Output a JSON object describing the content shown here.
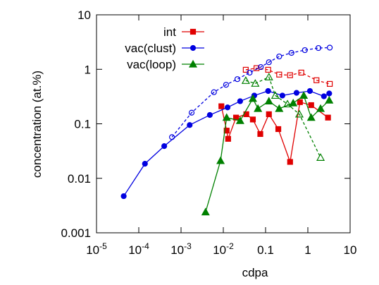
{
  "chart_data": {
    "type": "line",
    "xlabel": "cdpa",
    "ylabel": "concentration (at.%)",
    "xscale": "log",
    "yscale": "log",
    "xlim": [
      1e-05,
      10
    ],
    "ylim": [
      0.001,
      10
    ],
    "xticks": [
      {
        "value": 1e-05,
        "label": "10",
        "exponent": "-5"
      },
      {
        "value": 0.0001,
        "label": "10",
        "exponent": "-4"
      },
      {
        "value": 0.001,
        "label": "10",
        "exponent": "-3"
      },
      {
        "value": 0.01,
        "label": "10",
        "exponent": "-2"
      },
      {
        "value": 0.1,
        "label": "0.1"
      },
      1,
      10
    ],
    "yticks": [
      0.001,
      0.01,
      0.1,
      1,
      10
    ],
    "legend": "top-left",
    "series": [
      {
        "name": "int",
        "color": "#e00000",
        "marker": "square",
        "filled": true,
        "dashed": false,
        "x": [
          0.009,
          0.012,
          0.013,
          0.02,
          0.035,
          0.05,
          0.075,
          0.12,
          0.2,
          0.38,
          0.65,
          1.2,
          3.0
        ],
        "values": [
          0.21,
          0.075,
          0.053,
          0.13,
          0.15,
          0.12,
          0.065,
          0.15,
          0.08,
          0.02,
          0.25,
          0.22,
          0.13
        ]
      },
      {
        "name": "vac(clust)",
        "color": "#0000e0",
        "marker": "circle",
        "filled": true,
        "dashed": false,
        "x": [
          4.4e-05,
          0.00014,
          0.0004,
          0.0016,
          0.0048,
          0.0126,
          0.025,
          0.054,
          0.115,
          0.25,
          0.54,
          1.12,
          2.4,
          3.2
        ],
        "values": [
          0.0047,
          0.0185,
          0.039,
          0.095,
          0.145,
          0.2,
          0.26,
          0.33,
          0.4,
          0.33,
          0.37,
          0.4,
          0.32,
          0.36
        ]
      },
      {
        "name": "vac(loop)",
        "color": "#008000",
        "marker": "triangle",
        "filled": true,
        "dashed": false,
        "x": [
          0.0038,
          0.0086,
          0.012,
          0.025,
          0.05,
          0.066,
          0.12,
          0.21,
          0.45,
          0.8,
          1.2,
          2.0,
          3.2
        ],
        "values": [
          0.0024,
          0.021,
          0.13,
          0.114,
          0.29,
          0.19,
          0.26,
          0.19,
          0.24,
          0.33,
          0.13,
          0.19,
          0.27
        ]
      },
      {
        "color": "#e00000",
        "marker": "square",
        "filled": false,
        "dashed": true,
        "x": [
          0.034,
          0.061,
          0.115,
          0.21,
          0.38,
          0.7,
          1.6,
          3.3
        ],
        "values": [
          0.98,
          1.05,
          0.98,
          0.8,
          0.78,
          0.87,
          0.63,
          0.54
        ]
      },
      {
        "color": "#0000e0",
        "marker": "circle",
        "filled": false,
        "dashed": true,
        "x": [
          0.00061,
          0.00178,
          0.006,
          0.0116,
          0.0215,
          0.042,
          0.077,
          0.12,
          0.21,
          0.41,
          0.85,
          1.78,
          3.3
        ],
        "values": [
          0.057,
          0.16,
          0.38,
          0.52,
          0.66,
          0.87,
          1.1,
          1.35,
          1.72,
          2.0,
          2.25,
          2.46,
          2.5
        ]
      },
      {
        "color": "#008000",
        "marker": "triangle",
        "filled": false,
        "dashed": true,
        "x": [
          0.034,
          0.057,
          0.12,
          0.17,
          0.33,
          0.63,
          2.0
        ],
        "values": [
          0.62,
          0.55,
          0.72,
          0.33,
          0.23,
          0.15,
          0.024
        ]
      }
    ]
  }
}
